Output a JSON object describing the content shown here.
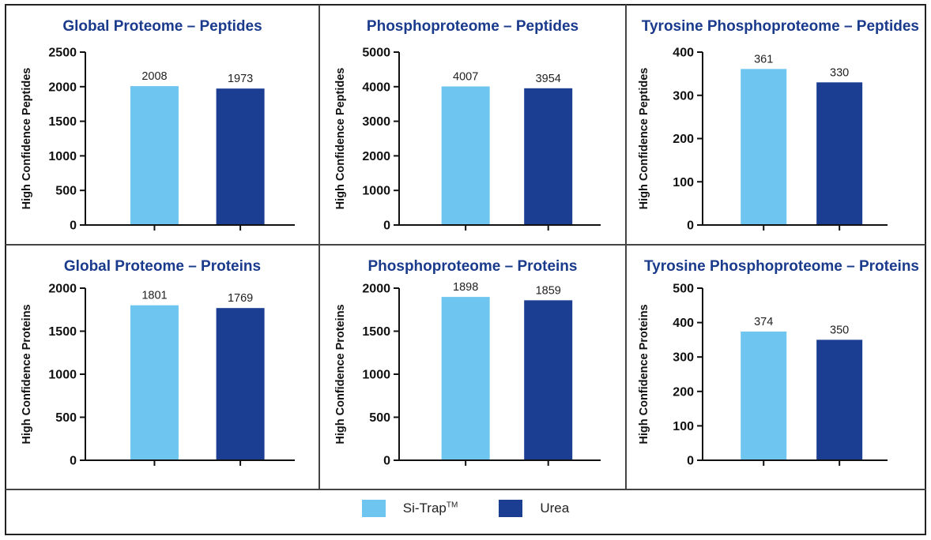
{
  "colors": {
    "si_trap": "#6ec5ef",
    "urea": "#1b3d92",
    "title": "#1a3a8c",
    "axis": "#111111"
  },
  "legend": {
    "items": [
      {
        "label": "Si-Trap",
        "suffix": "TM",
        "color": "#6ec5ef"
      },
      {
        "label": "Urea",
        "suffix": "",
        "color": "#1b3d92"
      }
    ],
    "placement": "bottom"
  },
  "chart_data": [
    {
      "type": "bar",
      "title": "Global Proteome – Peptides",
      "ylabel": "High Confidence Peptides",
      "xlabel": "",
      "categories": [
        "Si-Trap™",
        "Urea"
      ],
      "values": [
        2008,
        1973
      ],
      "data_labels": [
        "2008",
        "1973"
      ],
      "ylim": [
        0,
        2500
      ],
      "yticks": [
        0,
        500,
        1000,
        1500,
        2000,
        2500
      ],
      "grid": false
    },
    {
      "type": "bar",
      "title": "Phosphoproteome – Peptides",
      "ylabel": "High Confidence Peptides",
      "xlabel": "",
      "categories": [
        "Si-Trap™",
        "Urea"
      ],
      "values": [
        4007,
        3954
      ],
      "data_labels": [
        "4007",
        "3954"
      ],
      "ylim": [
        0,
        5000
      ],
      "yticks": [
        0,
        1000,
        2000,
        3000,
        4000,
        5000
      ],
      "grid": false
    },
    {
      "type": "bar",
      "title": "Tyrosine Phosphoproteome – Peptides",
      "ylabel": "High Confidence Peptides",
      "xlabel": "",
      "categories": [
        "Si-Trap™",
        "Urea"
      ],
      "values": [
        361,
        330
      ],
      "data_labels": [
        "361",
        "330"
      ],
      "ylim": [
        0,
        400
      ],
      "yticks": [
        0,
        100,
        200,
        300,
        400
      ],
      "grid": false
    },
    {
      "type": "bar",
      "title": "Global Proteome – Proteins",
      "ylabel": "High Confidence Proteins",
      "xlabel": "",
      "categories": [
        "Si-Trap™",
        "Urea"
      ],
      "values": [
        1801,
        1769
      ],
      "data_labels": [
        "1801",
        "1769"
      ],
      "ylim": [
        0,
        2000
      ],
      "yticks": [
        0,
        500,
        1000,
        1500,
        2000
      ],
      "grid": false
    },
    {
      "type": "bar",
      "title": "Phosphoproteome – Proteins",
      "ylabel": "High Confidence Proteins",
      "xlabel": "",
      "categories": [
        "Si-Trap™",
        "Urea"
      ],
      "values": [
        1898,
        1859
      ],
      "data_labels": [
        "1898",
        "1859"
      ],
      "ylim": [
        0,
        2000
      ],
      "yticks": [
        0,
        500,
        1000,
        1500,
        2000
      ],
      "grid": false
    },
    {
      "type": "bar",
      "title": "Tyrosine Phosphoproteome – Proteins",
      "ylabel": "High Confidence Proteins",
      "xlabel": "",
      "categories": [
        "Si-Trap™",
        "Urea"
      ],
      "values": [
        374,
        350
      ],
      "data_labels": [
        "374",
        "350"
      ],
      "ylim": [
        0,
        500
      ],
      "yticks": [
        0,
        100,
        200,
        300,
        400,
        500
      ],
      "grid": false
    }
  ]
}
